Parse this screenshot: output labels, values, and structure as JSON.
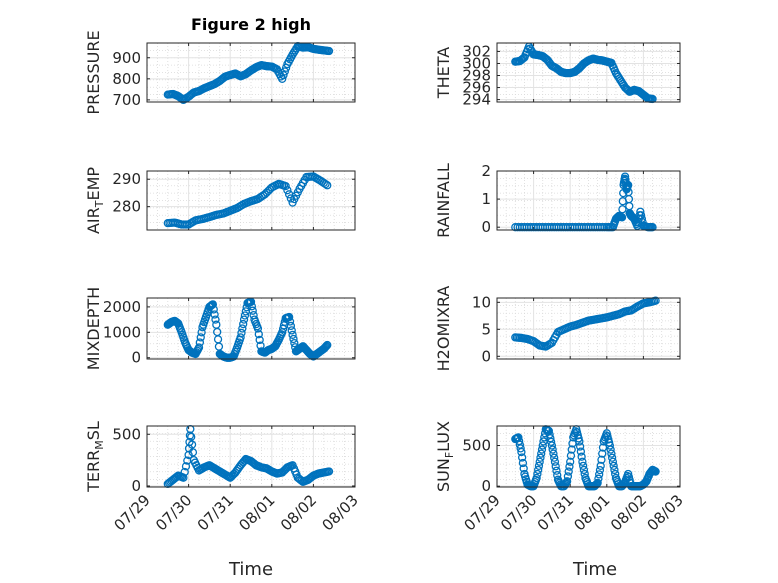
{
  "figure": {
    "title": "Figure 2 high",
    "xlabel": "Time",
    "marker_color": "#0072BD",
    "x_ticks": [
      "07/29",
      "07/30",
      "07/31",
      "08/01",
      "08/02",
      "08/03"
    ]
  },
  "chart_data": [
    {
      "type": "scatter",
      "ylabel": "PRESSURE",
      "ylim": [
        690,
        970
      ],
      "yticks": [
        700,
        800,
        900
      ],
      "grid": true,
      "x": [
        "07/29 12:00",
        "07/29 15:00",
        "07/29 18:00",
        "07/29 21:00",
        "07/30 00:00",
        "07/30 03:00",
        "07/30 06:00",
        "07/30 09:00",
        "07/30 12:00",
        "07/30 15:00",
        "07/30 18:00",
        "07/30 21:00",
        "07/31 00:00",
        "07/31 03:00",
        "07/31 06:00",
        "07/31 09:00",
        "07/31 12:00",
        "07/31 15:00",
        "07/31 18:00",
        "07/31 21:00",
        "08/01 00:00",
        "08/01 03:00",
        "08/01 06:00",
        "08/01 09:00",
        "08/01 12:00",
        "08/01 15:00",
        "08/01 18:00",
        "08/01 21:00",
        "08/02 00:00",
        "08/02 03:00",
        "08/02 06:00",
        "08/02 09:00"
      ],
      "series": [
        {
          "values": [
            725,
            728,
            718,
            700,
            715,
            735,
            742,
            755,
            765,
            775,
            790,
            810,
            818,
            825,
            812,
            822,
            840,
            855,
            865,
            860,
            858,
            845,
            800,
            870,
            915,
            955,
            948,
            950,
            942,
            938,
            935,
            932
          ]
        }
      ]
    },
    {
      "type": "scatter",
      "ylabel": "THETA",
      "ylim": [
        293.6,
        303.4
      ],
      "yticks": [
        294,
        296,
        298,
        300,
        302
      ],
      "grid": true,
      "x": [
        "07/29 12:00",
        "07/29 15:00",
        "07/29 18:00",
        "07/29 21:00",
        "07/30 00:00",
        "07/30 03:00",
        "07/30 06:00",
        "07/30 09:00",
        "07/30 12:00",
        "07/30 15:00",
        "07/30 18:00",
        "07/30 21:00",
        "07/31 00:00",
        "07/31 03:00",
        "07/31 06:00",
        "07/31 09:00",
        "07/31 12:00",
        "07/31 15:00",
        "07/31 18:00",
        "07/31 21:00",
        "08/01 00:00",
        "08/01 03:00",
        "08/01 06:00",
        "08/01 09:00",
        "08/01 12:00",
        "08/01 15:00",
        "08/01 18:00",
        "08/01 21:00",
        "08/02 00:00",
        "08/02 03:00",
        "08/02 06:00"
      ],
      "series": [
        {
          "values": [
            300.3,
            300.4,
            301.0,
            302.8,
            301.5,
            301.4,
            301.2,
            300.6,
            299.6,
            299.2,
            298.6,
            298.4,
            298.4,
            298.6,
            299.2,
            300.0,
            300.5,
            300.8,
            300.6,
            300.5,
            300.3,
            300.1,
            298.4,
            297.2,
            296.0,
            295.3,
            295.6,
            295.4,
            294.8,
            294.2,
            294.1
          ]
        }
      ]
    },
    {
      "type": "scatter",
      "ylabel": "AIR_TEMP",
      "ylim": [
        271.5,
        293
      ],
      "yticks": [
        280,
        290
      ],
      "grid": true,
      "x": [
        "07/29 12:00",
        "07/29 16:00",
        "07/29 20:00",
        "07/30 00:00",
        "07/30 04:00",
        "07/30 08:00",
        "07/30 12:00",
        "07/30 16:00",
        "07/30 20:00",
        "07/31 00:00",
        "07/31 04:00",
        "07/31 08:00",
        "07/31 12:00",
        "07/31 16:00",
        "07/31 20:00",
        "08/01 00:00",
        "08/01 04:00",
        "08/01 08:00",
        "08/01 12:00",
        "08/01 16:00",
        "08/01 20:00",
        "08/02 00:00",
        "08/02 04:00",
        "08/02 08:00"
      ],
      "series": [
        {
          "values": [
            274.0,
            274.2,
            273.5,
            273.5,
            275.0,
            275.5,
            276.2,
            277.0,
            277.5,
            278.5,
            279.5,
            281.0,
            282.0,
            282.8,
            284.5,
            287.0,
            288.3,
            287.5,
            281.5,
            286.5,
            290.8,
            291.0,
            289.5,
            287.8
          ]
        }
      ]
    },
    {
      "type": "scatter",
      "ylabel": "RAINFALL",
      "ylim": [
        -0.1,
        2.0
      ],
      "yticks": [
        0,
        1,
        2
      ],
      "grid": true,
      "x": [
        "07/29 12:00",
        "07/29 18:00",
        "07/30 00:00",
        "07/30 06:00",
        "07/30 12:00",
        "07/30 18:00",
        "07/31 00:00",
        "07/31 06:00",
        "07/31 12:00",
        "07/31 18:00",
        "08/01 00:00",
        "08/01 04:00",
        "08/01 06:00",
        "08/01 08:00",
        "08/01 10:00",
        "08/01 11:00",
        "08/01 12:00",
        "08/01 13:00",
        "08/01 14:00",
        "08/01 15:00",
        "08/01 16:00",
        "08/01 18:00",
        "08/01 20:00",
        "08/01 22:00",
        "08/02 00:00",
        "08/02 03:00",
        "08/02 06:00"
      ],
      "series": [
        {
          "values": [
            0,
            0,
            0,
            0,
            0,
            0,
            0,
            0,
            0,
            0,
            0,
            0,
            0.3,
            0.4,
            0.35,
            1.5,
            1.8,
            1.35,
            1.5,
            0.5,
            0.4,
            0.3,
            0.05,
            0.55,
            0.05,
            0,
            0
          ]
        }
      ]
    },
    {
      "type": "scatter",
      "ylabel": "MIXDEPTH",
      "ylim": [
        -50,
        2350
      ],
      "yticks": [
        0,
        1000,
        2000
      ],
      "grid": true,
      "x": [
        "07/29 12:00",
        "07/29 14:00",
        "07/29 16:00",
        "07/29 18:00",
        "07/29 20:00",
        "07/29 22:00",
        "07/30 00:00",
        "07/30 02:00",
        "07/30 04:00",
        "07/30 06:00",
        "07/30 08:00",
        "07/30 10:00",
        "07/30 12:00",
        "07/30 14:00",
        "07/30 16:00",
        "07/30 18:00",
        "07/30 20:00",
        "07/30 22:00",
        "07/31 00:00",
        "07/31 02:00",
        "07/31 04:00",
        "07/31 06:00",
        "07/31 08:00",
        "07/31 10:00",
        "07/31 12:00",
        "07/31 14:00",
        "07/31 16:00",
        "07/31 18:00",
        "07/31 20:00",
        "07/31 22:00",
        "08/01 00:00",
        "08/01 02:00",
        "08/01 04:00",
        "08/01 06:00",
        "08/01 08:00",
        "08/01 10:00",
        "08/01 12:00",
        "08/01 14:00",
        "08/01 16:00",
        "08/01 18:00",
        "08/01 20:00",
        "08/01 22:00",
        "08/02 00:00",
        "08/02 02:00",
        "08/02 04:00",
        "08/02 06:00",
        "08/02 08:00"
      ],
      "series": [
        {
          "values": [
            1300,
            1400,
            1450,
            1350,
            1000,
            600,
            300,
            200,
            150,
            400,
            1200,
            1600,
            2000,
            2100,
            1300,
            150,
            50,
            0,
            0,
            50,
            400,
            800,
            1500,
            2150,
            2200,
            1500,
            1150,
            250,
            200,
            300,
            350,
            450,
            700,
            1000,
            1550,
            1600,
            900,
            250,
            350,
            450,
            300,
            150,
            50,
            150,
            250,
            350,
            500
          ]
        }
      ]
    },
    {
      "type": "scatter",
      "ylabel": "H2OMIXRA",
      "ylim": [
        -0.5,
        10.8
      ],
      "yticks": [
        0,
        5,
        10
      ],
      "grid": true,
      "x": [
        "07/29 12:00",
        "07/29 16:00",
        "07/29 20:00",
        "07/30 00:00",
        "07/30 04:00",
        "07/30 08:00",
        "07/30 12:00",
        "07/30 16:00",
        "07/30 20:00",
        "07/31 00:00",
        "07/31 04:00",
        "07/31 08:00",
        "07/31 12:00",
        "07/31 16:00",
        "07/31 20:00",
        "08/01 00:00",
        "08/01 04:00",
        "08/01 08:00",
        "08/01 12:00",
        "08/01 16:00",
        "08/01 20:00",
        "08/02 00:00",
        "08/02 04:00",
        "08/02 08:00"
      ],
      "series": [
        {
          "values": [
            3.5,
            3.4,
            3.2,
            2.8,
            2.0,
            1.8,
            2.5,
            4.5,
            5.0,
            5.5,
            5.8,
            6.2,
            6.6,
            6.8,
            7.0,
            7.2,
            7.5,
            7.8,
            8.3,
            8.5,
            9.2,
            9.8,
            10.0,
            10.3
          ]
        }
      ]
    },
    {
      "type": "scatter",
      "ylabel": "TERR_MSL",
      "ylim": [
        -10,
        580
      ],
      "yticks": [
        0,
        500
      ],
      "grid": true,
      "x": [
        "07/29 12:00",
        "07/29 15:00",
        "07/29 18:00",
        "07/29 21:00",
        "07/30 00:00",
        "07/30 01:00",
        "07/30 03:00",
        "07/30 06:00",
        "07/30 09:00",
        "07/30 12:00",
        "07/30 15:00",
        "07/30 18:00",
        "07/30 21:00",
        "07/31 00:00",
        "07/31 03:00",
        "07/31 06:00",
        "07/31 09:00",
        "07/31 12:00",
        "07/31 15:00",
        "07/31 18:00",
        "07/31 21:00",
        "08/01 00:00",
        "08/01 03:00",
        "08/01 06:00",
        "08/01 09:00",
        "08/01 12:00",
        "08/01 15:00",
        "08/01 18:00",
        "08/01 21:00",
        "08/02 00:00",
        "08/02 03:00",
        "08/02 06:00",
        "08/02 09:00"
      ],
      "series": [
        {
          "values": [
            20,
            60,
            100,
            80,
            300,
            550,
            250,
            150,
            180,
            200,
            170,
            140,
            110,
            80,
            130,
            200,
            260,
            240,
            200,
            180,
            170,
            140,
            120,
            130,
            180,
            200,
            80,
            40,
            60,
            100,
            120,
            130,
            140
          ]
        }
      ]
    },
    {
      "type": "scatter",
      "ylabel": "SUN_FLUX",
      "ylim": [
        -10,
        740
      ],
      "yticks": [
        0,
        500
      ],
      "grid": true,
      "x": [
        "07/29 12:00",
        "07/29 14:00",
        "07/29 16:00",
        "07/29 18:00",
        "07/29 20:00",
        "07/29 22:00",
        "07/30 00:00",
        "07/30 02:00",
        "07/30 04:00",
        "07/30 06:00",
        "07/30 08:00",
        "07/30 10:00",
        "07/30 12:00",
        "07/30 14:00",
        "07/30 16:00",
        "07/30 18:00",
        "07/30 20:00",
        "07/30 22:00",
        "07/31 00:00",
        "07/31 02:00",
        "07/31 04:00",
        "07/31 06:00",
        "07/31 08:00",
        "07/31 10:00",
        "07/31 12:00",
        "07/31 14:00",
        "07/31 16:00",
        "07/31 18:00",
        "07/31 20:00",
        "07/31 22:00",
        "08/01 00:00",
        "08/01 02:00",
        "08/01 04:00",
        "08/01 06:00",
        "08/01 08:00",
        "08/01 10:00",
        "08/01 12:00",
        "08/01 14:00",
        "08/01 16:00",
        "08/01 18:00",
        "08/01 20:00",
        "08/01 22:00",
        "08/02 00:00",
        "08/02 02:00",
        "08/02 04:00",
        "08/02 06:00",
        "08/02 08:00"
      ],
      "series": [
        {
          "values": [
            580,
            600,
            420,
            150,
            20,
            0,
            0,
            100,
            300,
            500,
            700,
            680,
            500,
            300,
            80,
            0,
            0,
            60,
            300,
            600,
            700,
            550,
            300,
            100,
            0,
            0,
            0,
            40,
            250,
            550,
            650,
            500,
            300,
            100,
            0,
            0,
            50,
            150,
            0,
            0,
            0,
            0,
            20,
            60,
            150,
            200,
            180
          ]
        }
      ]
    }
  ]
}
